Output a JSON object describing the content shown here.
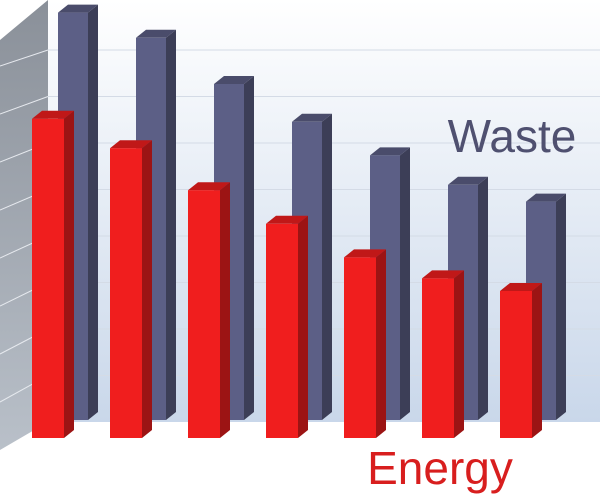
{
  "chart_data": {
    "type": "bar3d",
    "categories": [
      null,
      null,
      null,
      null,
      null,
      null,
      null
    ],
    "series": [
      {
        "name": "Waste",
        "color": "#5c5f86",
        "values": [
          97,
          91,
          80,
          71,
          63,
          56,
          52
        ]
      },
      {
        "name": "Energy",
        "color": "#f01e1e",
        "values": [
          76,
          69,
          59,
          51,
          43,
          38,
          35
        ]
      }
    ],
    "ylim": [
      0,
      100
    ],
    "grid": true
  }
}
